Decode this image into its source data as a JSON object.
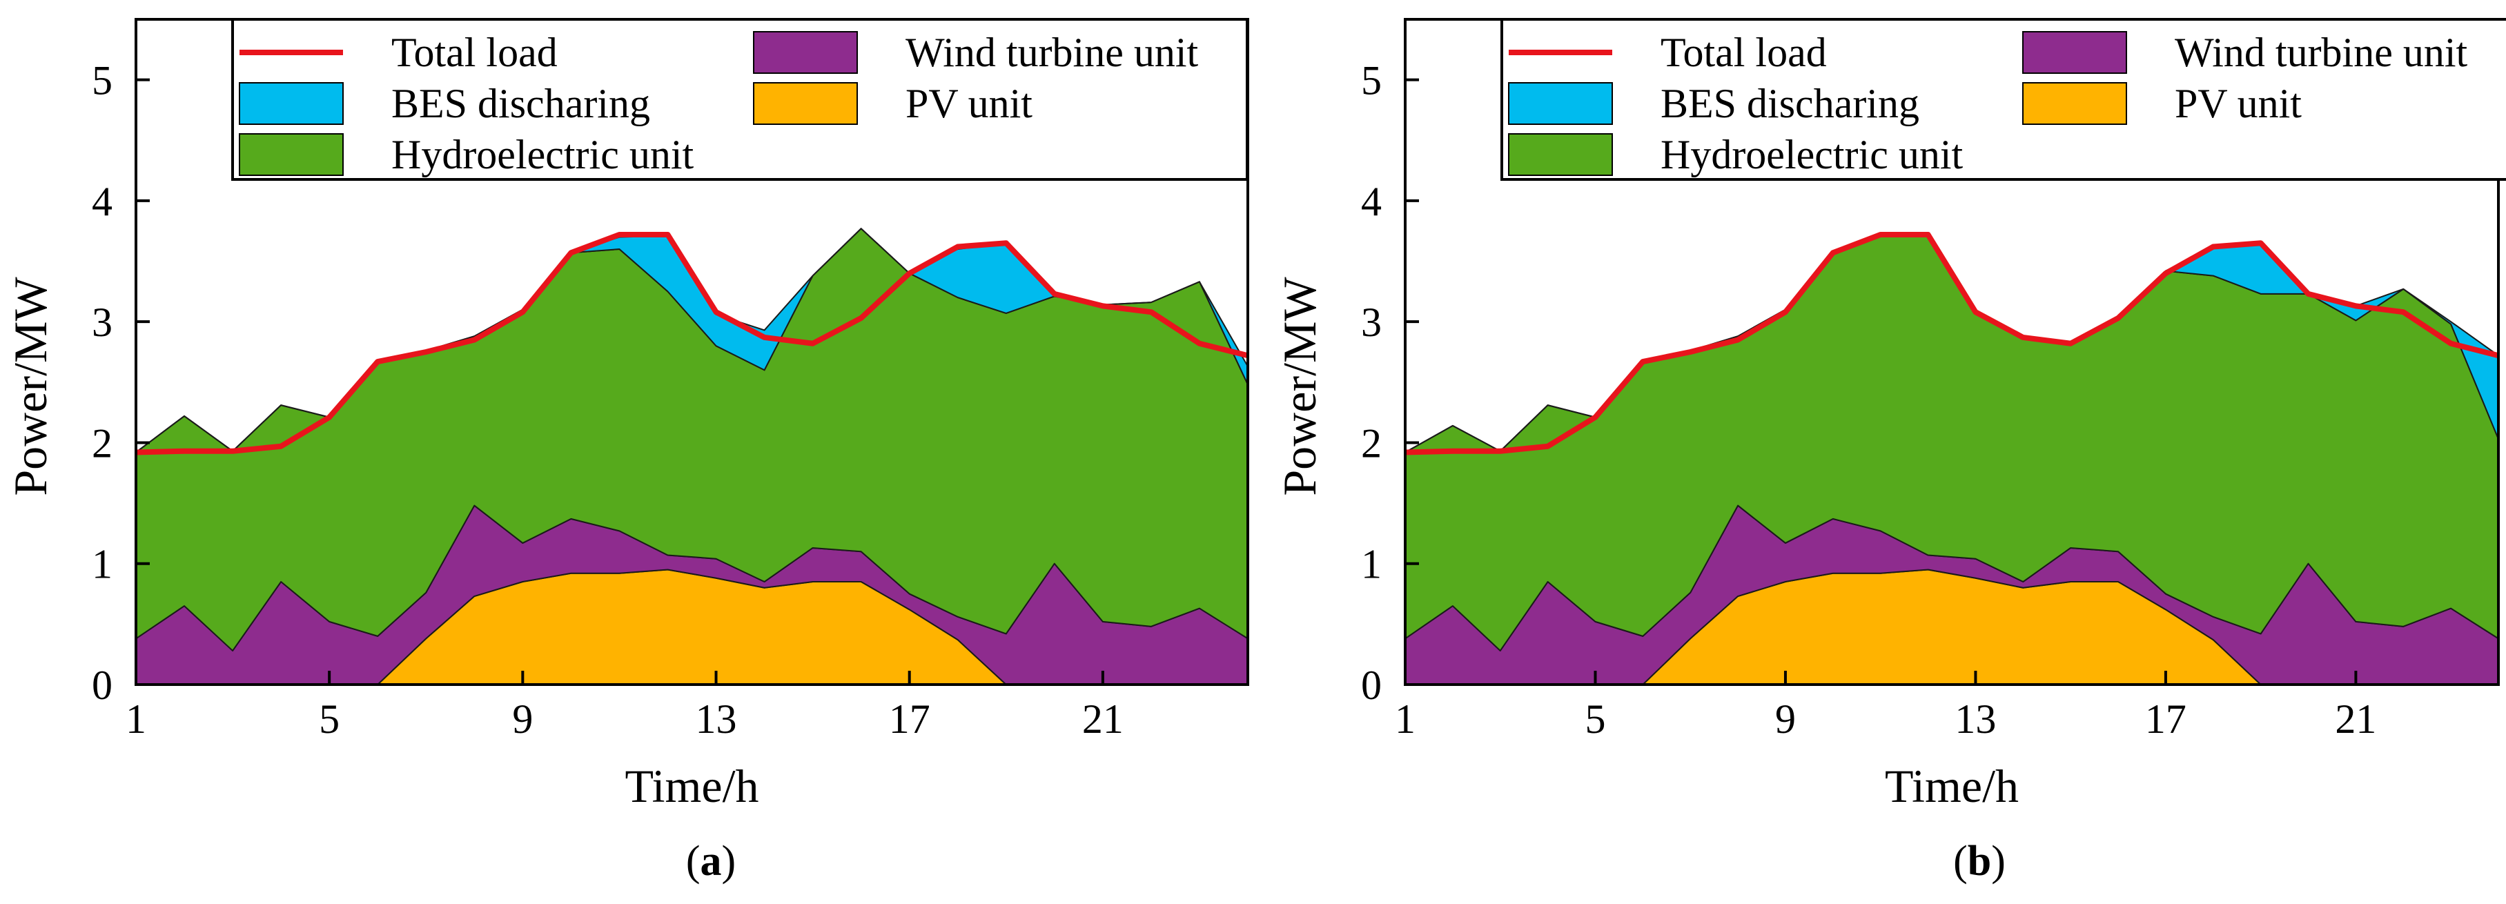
{
  "charts": [
    {
      "id": "a",
      "caption_letter": "a",
      "chart_data": {
        "type": "area",
        "stacked": true,
        "title": "",
        "xlabel": "Time/h",
        "ylabel": "Power/MW",
        "xlim": [
          1,
          24
        ],
        "ylim": [
          0,
          5.5
        ],
        "xticks": [
          1,
          5,
          9,
          13,
          17,
          21
        ],
        "yticks": [
          0,
          1,
          2,
          3,
          4,
          5
        ],
        "x": [
          1,
          2,
          3,
          4,
          5,
          6,
          7,
          8,
          9,
          10,
          11,
          12,
          13,
          14,
          15,
          16,
          17,
          18,
          19,
          20,
          21,
          22,
          23,
          24
        ],
        "series": [
          {
            "name": "PV unit",
            "color": "#FFB300",
            "values": [
              0,
              0,
              0,
              0,
              0,
              0,
              0.38,
              0.73,
              0.85,
              0.92,
              0.92,
              0.95,
              0.88,
              0.8,
              0.85,
              0.85,
              0.62,
              0.37,
              0,
              0,
              0,
              0,
              0,
              0
            ]
          },
          {
            "name": "Wind turbine unit",
            "color": "#8E2C8E",
            "values": [
              0.38,
              0.65,
              0.28,
              0.85,
              0.52,
              0.4,
              0.38,
              0.75,
              0.32,
              0.45,
              0.35,
              0.12,
              0.16,
              0.05,
              0.28,
              0.25,
              0.13,
              0.19,
              0.42,
              1.0,
              0.52,
              0.48,
              0.63,
              0.38
            ]
          },
          {
            "name": "Hydroelectric unit",
            "color": "#56AA1C",
            "values": [
              1.54,
              1.57,
              1.65,
              1.46,
              1.69,
              2.27,
              2.0,
              1.4,
              1.93,
              2.2,
              2.33,
              2.18,
              1.76,
              1.75,
              2.25,
              2.67,
              2.65,
              2.64,
              2.65,
              2.21,
              2.62,
              2.68,
              2.7,
              2.1
            ]
          },
          {
            "name": "BES discharing",
            "color": "#00BBEE",
            "values": [
              0,
              0,
              0,
              0,
              0,
              0,
              0,
              0,
              0,
              0,
              0.1,
              0.46,
              0.26,
              0.33,
              0,
              0,
              0,
              0.4,
              0.58,
              0,
              0,
              0,
              0,
              0.15
            ]
          }
        ],
        "line": {
          "name": "Total load",
          "color": "#E8141C",
          "values": [
            1.92,
            1.93,
            1.93,
            1.97,
            2.21,
            2.67,
            2.75,
            2.85,
            3.08,
            3.57,
            3.72,
            3.72,
            3.08,
            2.87,
            2.82,
            3.03,
            3.4,
            3.62,
            3.65,
            3.23,
            3.13,
            3.08,
            2.82,
            2.72
          ]
        },
        "legend": {
          "position": "top",
          "entries": [
            "Total load",
            "Wind turbine unit",
            "BES discharing",
            "PV unit",
            "Hydroelectric unit"
          ]
        }
      }
    },
    {
      "id": "b",
      "caption_letter": "b",
      "chart_data": {
        "type": "area",
        "stacked": true,
        "title": "",
        "xlabel": "Time/h",
        "ylabel": "Power/MW",
        "xlim": [
          1,
          24
        ],
        "ylim": [
          0,
          5.5
        ],
        "xticks": [
          1,
          5,
          9,
          13,
          17,
          21
        ],
        "yticks": [
          0,
          1,
          2,
          3,
          4,
          5
        ],
        "x": [
          1,
          2,
          3,
          4,
          5,
          6,
          7,
          8,
          9,
          10,
          11,
          12,
          13,
          14,
          15,
          16,
          17,
          18,
          19,
          20,
          21,
          22,
          23,
          24
        ],
        "series": [
          {
            "name": "PV unit",
            "color": "#FFB300",
            "values": [
              0,
              0,
              0,
              0,
              0,
              0,
              0.38,
              0.73,
              0.85,
              0.92,
              0.92,
              0.95,
              0.88,
              0.8,
              0.85,
              0.85,
              0.62,
              0.37,
              0,
              0,
              0,
              0,
              0,
              0
            ]
          },
          {
            "name": "Wind turbine unit",
            "color": "#8E2C8E",
            "values": [
              0.38,
              0.65,
              0.28,
              0.85,
              0.52,
              0.4,
              0.38,
              0.75,
              0.32,
              0.45,
              0.35,
              0.12,
              0.16,
              0.05,
              0.28,
              0.25,
              0.13,
              0.19,
              0.42,
              1.0,
              0.52,
              0.48,
              0.63,
              0.38
            ]
          },
          {
            "name": "Hydroelectric unit",
            "color": "#56AA1C",
            "values": [
              1.54,
              1.49,
              1.65,
              1.46,
              1.69,
              2.27,
              2.0,
              1.4,
              1.93,
              2.2,
              2.46,
              2.66,
              2.04,
              2.03,
              1.7,
              1.93,
              2.67,
              2.82,
              2.81,
              2.23,
              2.49,
              2.79,
              2.35,
              1.65
            ]
          },
          {
            "name": "BES discharing",
            "color": "#00BBEE",
            "values": [
              0,
              0,
              0,
              0,
              0,
              0,
              0,
              0,
              0,
              0,
              0,
              0,
              0,
              0,
              0,
              0,
              0,
              0.24,
              0.43,
              0,
              0.12,
              0,
              0.02,
              0.69
            ]
          }
        ],
        "line": {
          "name": "Total load",
          "color": "#E8141C",
          "values": [
            1.92,
            1.93,
            1.93,
            1.97,
            2.21,
            2.67,
            2.75,
            2.85,
            3.08,
            3.57,
            3.72,
            3.72,
            3.08,
            2.87,
            2.82,
            3.03,
            3.4,
            3.62,
            3.65,
            3.23,
            3.13,
            3.08,
            2.82,
            2.72
          ]
        },
        "legend": {
          "position": "top",
          "entries": [
            "Total load",
            "Wind turbine unit",
            "BES discharing",
            "PV unit",
            "Hydroelectric unit"
          ]
        }
      }
    }
  ]
}
